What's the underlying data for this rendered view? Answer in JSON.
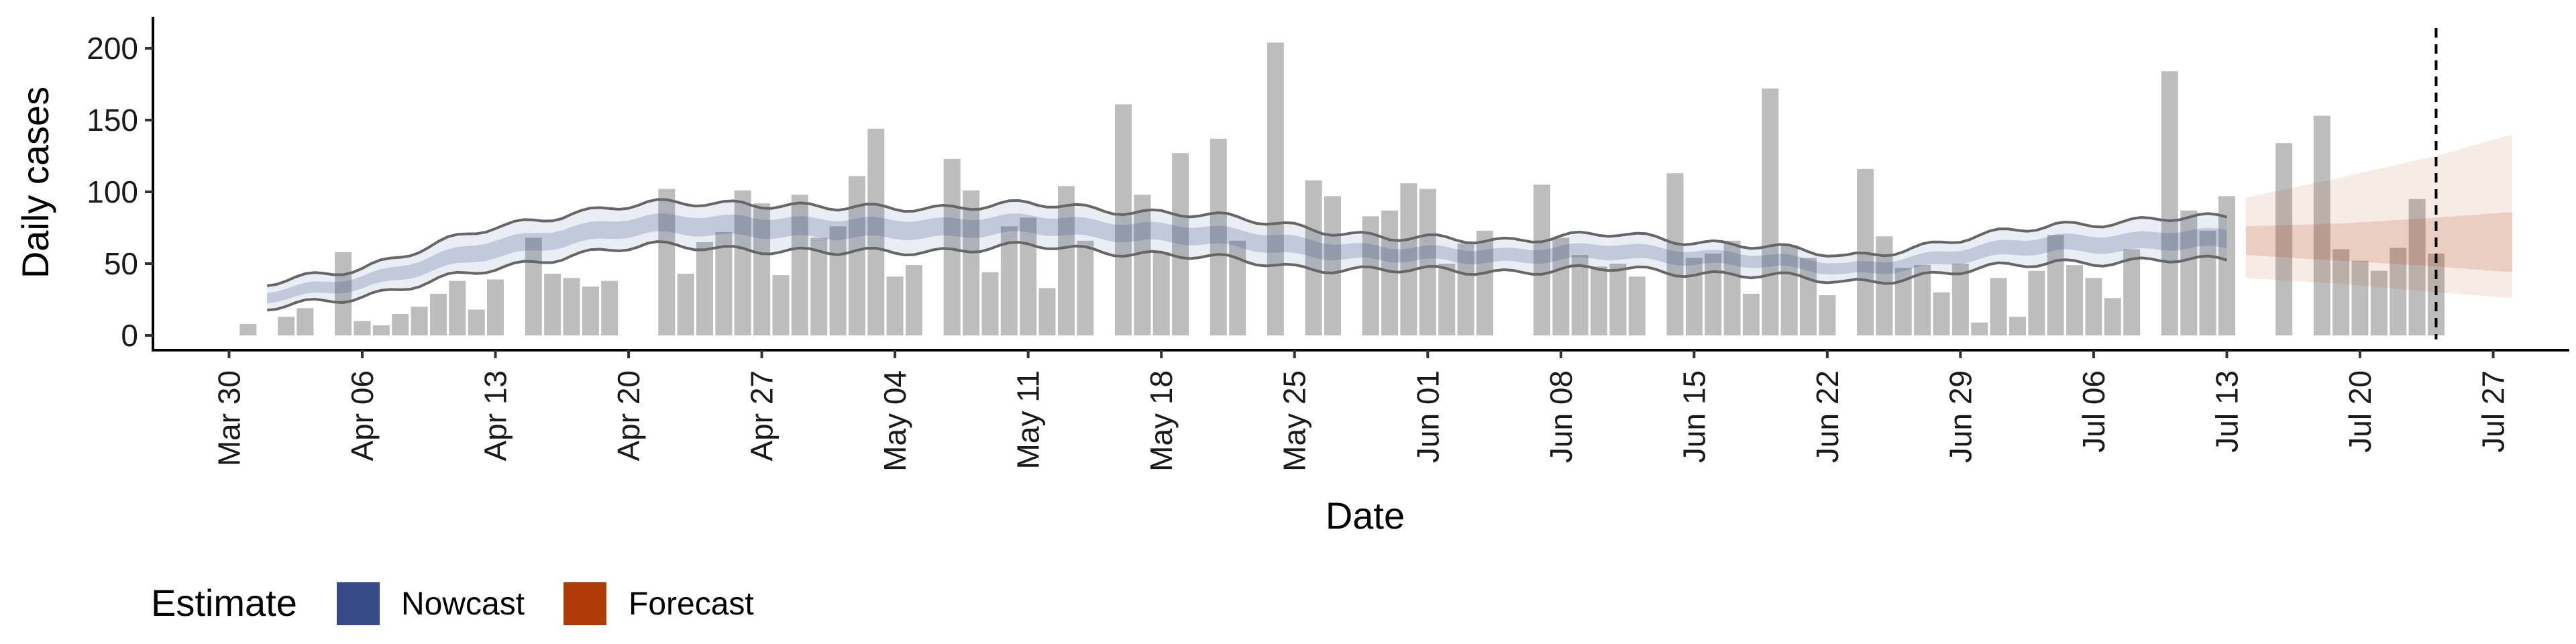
{
  "chart_data": {
    "type": "bar",
    "xlabel": "Date",
    "ylabel": "Daily cases",
    "ylim": [
      0,
      215
    ],
    "yticks": [
      0,
      50,
      100,
      150,
      200
    ],
    "xrange": [
      "2020-03-26",
      "2020-07-31"
    ],
    "xticks": [
      {
        "date": "2020-03-30",
        "label": "Mar 30"
      },
      {
        "date": "2020-04-06",
        "label": "Apr 06"
      },
      {
        "date": "2020-04-13",
        "label": "Apr 13"
      },
      {
        "date": "2020-04-20",
        "label": "Apr 20"
      },
      {
        "date": "2020-04-27",
        "label": "Apr 27"
      },
      {
        "date": "2020-05-04",
        "label": "May 04"
      },
      {
        "date": "2020-05-11",
        "label": "May 11"
      },
      {
        "date": "2020-05-18",
        "label": "May 18"
      },
      {
        "date": "2020-05-25",
        "label": "May 25"
      },
      {
        "date": "2020-06-01",
        "label": "Jun 01"
      },
      {
        "date": "2020-06-08",
        "label": "Jun 08"
      },
      {
        "date": "2020-06-15",
        "label": "Jun 15"
      },
      {
        "date": "2020-06-22",
        "label": "Jun 22"
      },
      {
        "date": "2020-06-29",
        "label": "Jun 29"
      },
      {
        "date": "2020-07-06",
        "label": "Jul 06"
      },
      {
        "date": "2020-07-13",
        "label": "Jul 13"
      },
      {
        "date": "2020-07-20",
        "label": "Jul 20"
      },
      {
        "date": "2020-07-27",
        "label": "Jul 27"
      }
    ],
    "vline_date": "2020-07-24",
    "grid": false,
    "legend": {
      "position": "bottom-left",
      "title": "Estimate",
      "entries": [
        {
          "label": "Nowcast",
          "color": "#354a87"
        },
        {
          "label": "Forecast",
          "color": "#b03a07"
        }
      ]
    },
    "bars": {
      "color": "#bdbdbd",
      "start_date": "2020-03-31",
      "values": [
        8,
        0,
        13,
        19,
        0,
        58,
        10,
        7,
        15,
        20,
        29,
        38,
        18,
        39,
        0,
        68,
        43,
        40,
        34,
        38,
        0,
        0,
        102,
        43,
        65,
        72,
        101,
        92,
        42,
        98,
        68,
        76,
        111,
        144,
        41,
        49,
        0,
        123,
        101,
        44,
        76,
        82,
        33,
        104,
        66,
        0,
        161,
        98,
        58,
        127,
        0,
        137,
        66,
        0,
        204,
        0,
        108,
        97,
        0,
        83,
        87,
        106,
        102,
        50,
        64,
        73,
        0,
        0,
        105,
        68,
        56,
        48,
        50,
        41,
        0,
        113,
        54,
        57,
        66,
        29,
        172,
        63,
        54,
        28,
        0,
        116,
        69,
        47,
        49,
        30,
        50,
        9,
        40,
        13,
        45,
        70,
        49,
        40,
        26,
        60,
        0,
        184,
        87,
        73,
        97,
        0,
        0,
        134,
        0,
        153,
        60,
        52,
        45,
        61,
        95,
        57
      ]
    },
    "nowcast": {
      "start_date": "2020-04-01",
      "end_date": "2020-07-13",
      "knots": [
        {
          "date": "2020-04-01",
          "lower": 18,
          "median": 26,
          "upper": 35
        },
        {
          "date": "2020-04-06",
          "lower": 28,
          "median": 38,
          "upper": 48
        },
        {
          "date": "2020-04-13",
          "lower": 46,
          "median": 60,
          "upper": 75
        },
        {
          "date": "2020-04-17",
          "lower": 57,
          "median": 70,
          "upper": 86
        },
        {
          "date": "2020-04-21",
          "lower": 62,
          "median": 76,
          "upper": 91
        },
        {
          "date": "2020-04-26",
          "lower": 61,
          "median": 77,
          "upper": 93
        },
        {
          "date": "2020-05-01",
          "lower": 57,
          "median": 74,
          "upper": 88
        },
        {
          "date": "2020-05-07",
          "lower": 60,
          "median": 76,
          "upper": 90
        },
        {
          "date": "2020-05-11",
          "lower": 62,
          "median": 77,
          "upper": 91
        },
        {
          "date": "2020-05-18",
          "lower": 57,
          "median": 72,
          "upper": 86
        },
        {
          "date": "2020-05-25",
          "lower": 48,
          "median": 63,
          "upper": 77
        },
        {
          "date": "2020-05-30",
          "lower": 45,
          "median": 56,
          "upper": 67
        },
        {
          "date": "2020-06-05",
          "lower": 45,
          "median": 56,
          "upper": 67
        },
        {
          "date": "2020-06-11",
          "lower": 46,
          "median": 58,
          "upper": 70
        },
        {
          "date": "2020-06-17",
          "lower": 43,
          "median": 54,
          "upper": 64
        },
        {
          "date": "2020-06-23",
          "lower": 37,
          "median": 46,
          "upper": 55
        },
        {
          "date": "2020-06-29",
          "lower": 44,
          "median": 55,
          "upper": 66
        },
        {
          "date": "2020-07-04",
          "lower": 52,
          "median": 65,
          "upper": 78
        },
        {
          "date": "2020-07-08",
          "lower": 51,
          "median": 64,
          "upper": 79
        },
        {
          "date": "2020-07-13",
          "lower": 53,
          "median": 67,
          "upper": 83
        }
      ]
    },
    "forecast": {
      "start_date": "2020-07-14",
      "end_date": "2020-07-28",
      "knots": [
        {
          "date": "2020-07-14",
          "lower90": 40,
          "lower50": 56,
          "median": 66,
          "upper50": 76,
          "upper90": 96
        },
        {
          "date": "2020-07-19",
          "lower90": 36,
          "lower50": 52,
          "median": 65,
          "upper50": 78,
          "upper90": 110
        },
        {
          "date": "2020-07-24",
          "lower90": 30,
          "lower50": 48,
          "median": 65,
          "upper50": 82,
          "upper90": 125
        },
        {
          "date": "2020-07-28",
          "lower90": 26,
          "lower50": 44,
          "median": 65,
          "upper50": 86,
          "upper90": 140
        }
      ]
    }
  }
}
